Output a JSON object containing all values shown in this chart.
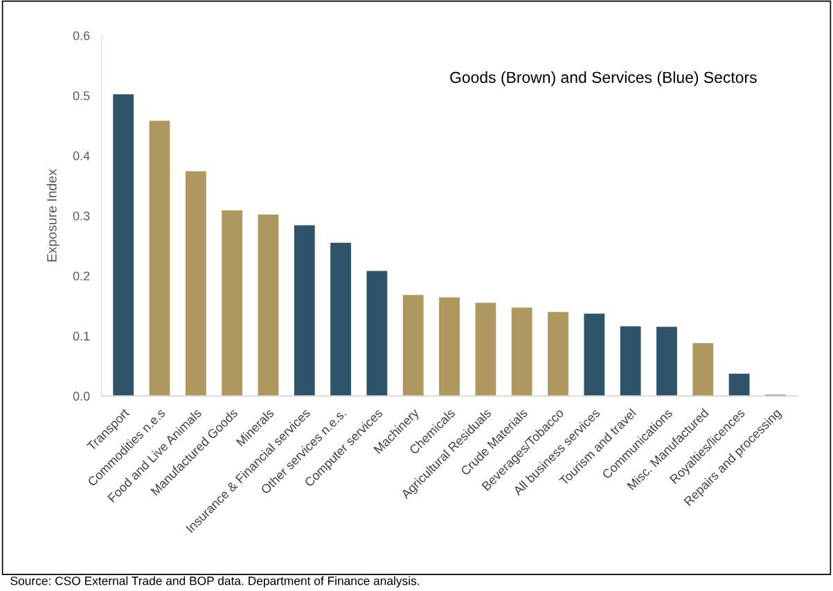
{
  "chart_data": {
    "type": "bar",
    "ylabel": "Exposure Index",
    "categories": [
      "Transport",
      "Commodities n.e.s",
      "Food and Live Animals",
      "Manufactured Goods",
      "Minerals",
      "Insurance & Financial services",
      "Other services n.e.s.",
      "Computer services",
      "Machinery",
      "Chemicals",
      "Agricultural Residuals",
      "Crude Materials",
      "Beverages/Tobacco",
      "All business services",
      "Tourism and travel",
      "Communications",
      "Misc. Manufactured",
      "Royalties/licences",
      "Repairs and processing"
    ],
    "values": [
      0.502,
      0.458,
      0.374,
      0.309,
      0.302,
      0.284,
      0.255,
      0.208,
      0.168,
      0.164,
      0.155,
      0.147,
      0.14,
      0.137,
      0.116,
      0.115,
      0.088,
      0.037,
      0.002
    ],
    "colors": [
      "#2f5368",
      "#ae9860",
      "#ae9860",
      "#ae9860",
      "#ae9860",
      "#2f5368",
      "#2f5368",
      "#2f5368",
      "#ae9860",
      "#ae9860",
      "#ae9860",
      "#ae9860",
      "#ae9860",
      "#2f5368",
      "#2f5368",
      "#2f5368",
      "#ae9860",
      "#2f5368",
      "#2f5368"
    ],
    "ylim": [
      0,
      0.6
    ],
    "yticks": [
      {
        "value": 0,
        "label": "0.0"
      },
      {
        "value": 0.1,
        "label": "0.1"
      },
      {
        "value": 0.2,
        "label": "0.2"
      },
      {
        "value": 0.3,
        "label": "0.3"
      },
      {
        "value": 0.4,
        "label": "0.4"
      },
      {
        "value": 0.5,
        "label": "0.5"
      },
      {
        "value": 0.6,
        "label": "0.6"
      }
    ],
    "grid": false,
    "annotations": [
      "Goods (Brown) and Services (Blue) Sectors",
      "Source: CSO External Trade and BOP data. Department of Finance analysis."
    ]
  }
}
